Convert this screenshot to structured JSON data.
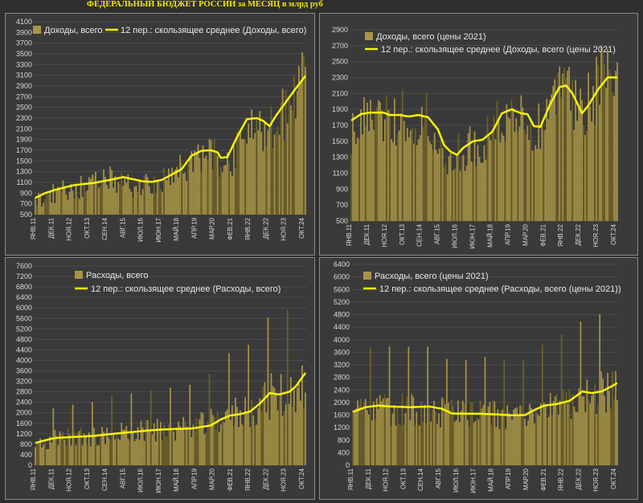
{
  "title": "ФЕДЕРАЛЬНЫЙ БЮДЖЕТ РОССИИ за МЕСЯЦ в млрд руб",
  "colors": {
    "bar": "#a89445",
    "barDark": "#6e6228",
    "line": "#f5f500",
    "title": "#f3e600"
  },
  "chart_data": [
    {
      "type": "bar",
      "x_start": "2011-01",
      "months": 167,
      "x_ticks": [
        "ЯНВ.11",
        "ДЕК.11",
        "НОЯ.12",
        "ОКТ.13",
        "СЕН.14",
        "АВГ.15",
        "ИЮЛ.16",
        "ИЮН.17",
        "МАЙ.18",
        "АПР.19",
        "МАР.20",
        "ФЕВ.21",
        "ЯНВ.22",
        "ДЕК.22",
        "НОЯ.23",
        "ОКТ.24"
      ],
      "ylim": [
        500,
        4100
      ],
      "yticks": [
        500,
        700,
        900,
        1100,
        1300,
        1500,
        1700,
        1900,
        2100,
        2300,
        2500,
        2700,
        2900,
        3100,
        3300,
        3500,
        3700,
        3900,
        4100
      ],
      "series": [
        {
          "name": "Доходы, всего",
          "kind": "bar",
          "trend": [
            [
              0,
              750
            ],
            [
              12,
              890
            ],
            [
              24,
              1000
            ],
            [
              36,
              1060
            ],
            [
              48,
              1160
            ],
            [
              60,
              1010
            ],
            [
              72,
              1050
            ],
            [
              84,
              1200
            ],
            [
              96,
              1500
            ],
            [
              108,
              1640
            ],
            [
              114,
              1450
            ],
            [
              120,
              1500
            ],
            [
              132,
              2200
            ],
            [
              144,
              2050
            ],
            [
              156,
              2500
            ],
            [
              166,
              3080
            ]
          ],
          "noise": 0.22
        },
        {
          "name": "12 пер.: скользящее среднее (Доходы, всего)",
          "kind": "line",
          "points": [
            [
              0,
              810
            ],
            [
              6,
              900
            ],
            [
              12,
              960
            ],
            [
              24,
              1050
            ],
            [
              36,
              1090
            ],
            [
              48,
              1160
            ],
            [
              54,
              1200
            ],
            [
              60,
              1160
            ],
            [
              66,
              1120
            ],
            [
              72,
              1110
            ],
            [
              78,
              1150
            ],
            [
              84,
              1250
            ],
            [
              90,
              1350
            ],
            [
              96,
              1600
            ],
            [
              102,
              1690
            ],
            [
              108,
              1700
            ],
            [
              112,
              1660
            ],
            [
              114,
              1560
            ],
            [
              118,
              1570
            ],
            [
              124,
              1950
            ],
            [
              130,
              2280
            ],
            [
              136,
              2300
            ],
            [
              140,
              2250
            ],
            [
              144,
              2150
            ],
            [
              148,
              2350
            ],
            [
              154,
              2600
            ],
            [
              160,
              2850
            ],
            [
              166,
              3090
            ]
          ]
        }
      ]
    },
    {
      "type": "bar",
      "x_start": "2011-01",
      "months": 167,
      "x_ticks": [
        "ЯНВ.11",
        "ДЕК.11",
        "НОЯ.12",
        "ОКТ.13",
        "СЕН.14",
        "АВГ.15",
        "ИЮЛ.16",
        "ИЮН.17",
        "МАЙ.18",
        "АПР.19",
        "МАР.20",
        "ФЕВ.21",
        "ЯНВ.22",
        "ДЕК.22",
        "НОЯ.23",
        "ОКТ.24"
      ],
      "ylim": [
        500,
        3000
      ],
      "yticks": [
        500,
        700,
        900,
        1100,
        1300,
        1500,
        1700,
        1900,
        2100,
        2300,
        2500,
        2700,
        2900
      ],
      "series": [
        {
          "name": "Доходы, всего (цены 2021)",
          "kind": "bar",
          "trend": [
            [
              0,
              1650
            ],
            [
              12,
              1820
            ],
            [
              24,
              1800
            ],
            [
              36,
              1800
            ],
            [
              48,
              1780
            ],
            [
              60,
              1350
            ],
            [
              72,
              1400
            ],
            [
              84,
              1480
            ],
            [
              96,
              1850
            ],
            [
              108,
              1830
            ],
            [
              114,
              1650
            ],
            [
              120,
              1700
            ],
            [
              132,
              2150
            ],
            [
              144,
              1850
            ],
            [
              156,
              2250
            ],
            [
              166,
              2320
            ]
          ],
          "noise": 0.2
        },
        {
          "name": "12 пер.: скользящее среднее (Доходы, всего (цены 2021)",
          "kind": "line",
          "points": [
            [
              0,
              1760
            ],
            [
              6,
              1840
            ],
            [
              12,
              1860
            ],
            [
              20,
              1860
            ],
            [
              24,
              1830
            ],
            [
              30,
              1830
            ],
            [
              36,
              1810
            ],
            [
              42,
              1830
            ],
            [
              48,
              1800
            ],
            [
              54,
              1650
            ],
            [
              58,
              1450
            ],
            [
              62,
              1370
            ],
            [
              66,
              1330
            ],
            [
              70,
              1420
            ],
            [
              76,
              1500
            ],
            [
              82,
              1520
            ],
            [
              88,
              1620
            ],
            [
              94,
              1850
            ],
            [
              100,
              1900
            ],
            [
              106,
              1850
            ],
            [
              110,
              1840
            ],
            [
              114,
              1690
            ],
            [
              118,
              1680
            ],
            [
              124,
              1960
            ],
            [
              130,
              2180
            ],
            [
              134,
              2200
            ],
            [
              138,
              2100
            ],
            [
              144,
              1850
            ],
            [
              148,
              1950
            ],
            [
              154,
              2150
            ],
            [
              160,
              2300
            ],
            [
              166,
              2300
            ]
          ]
        }
      ]
    },
    {
      "type": "bar",
      "x_start": "2011-01",
      "months": 167,
      "x_ticks": [
        "ЯНВ.11",
        "ДЕК.11",
        "НОЯ.12",
        "ОКТ.13",
        "СЕН.14",
        "АВГ.15",
        "ИЮЛ.16",
        "ИЮН.17",
        "МАЙ.18",
        "АПР.19",
        "МАР.20",
        "ФЕВ.21",
        "ЯНВ.22",
        "ДЕК.22",
        "НОЯ.23",
        "ОКТ.24"
      ],
      "ylim": [
        0,
        7600
      ],
      "yticks": [
        0,
        400,
        800,
        1200,
        1600,
        2000,
        2400,
        2800,
        3200,
        3600,
        4000,
        4400,
        4800,
        5200,
        5600,
        6000,
        6400,
        6800,
        7200,
        7600
      ],
      "series": [
        {
          "name": "Расходы, всего",
          "kind": "bar",
          "trend": [
            [
              0,
              800
            ],
            [
              12,
              1000
            ],
            [
              24,
              1050
            ],
            [
              36,
              1100
            ],
            [
              48,
              1200
            ],
            [
              60,
              1250
            ],
            [
              72,
              1300
            ],
            [
              84,
              1350
            ],
            [
              96,
              1400
            ],
            [
              108,
              1600
            ],
            [
              114,
              1900
            ],
            [
              120,
              1950
            ],
            [
              132,
              2100
            ],
            [
              144,
              2600
            ],
            [
              156,
              2700
            ],
            [
              166,
              3300
            ]
          ],
          "noise": 0.35,
          "spike_factor": 2.2
        },
        {
          "name": "12 пер.: скользящее среднее (Расходы, всего)",
          "kind": "line",
          "points": [
            [
              0,
              850
            ],
            [
              6,
              950
            ],
            [
              12,
              1040
            ],
            [
              24,
              1080
            ],
            [
              36,
              1120
            ],
            [
              48,
              1200
            ],
            [
              60,
              1270
            ],
            [
              72,
              1340
            ],
            [
              84,
              1380
            ],
            [
              96,
              1400
            ],
            [
              108,
              1520
            ],
            [
              114,
              1750
            ],
            [
              120,
              1900
            ],
            [
              126,
              1950
            ],
            [
              132,
              2050
            ],
            [
              138,
              2350
            ],
            [
              144,
              2750
            ],
            [
              150,
              2700
            ],
            [
              156,
              2800
            ],
            [
              160,
              3000
            ],
            [
              166,
              3520
            ]
          ]
        }
      ]
    },
    {
      "type": "bar",
      "x_start": "2011-01",
      "months": 167,
      "x_ticks": [
        "ЯНВ.11",
        "ДЕК.11",
        "НОЯ.12",
        "ОКТ.13",
        "СЕН.14",
        "АВГ.15",
        "ИЮЛ.16",
        "ИЮН.17",
        "МАЙ.18",
        "АПР.19",
        "МАР.20",
        "ФЕВ.21",
        "ЯНВ.22",
        "ДЕК.22",
        "НОЯ.23",
        "ОКТ.24"
      ],
      "ylim": [
        0,
        6400
      ],
      "yticks": [
        0,
        400,
        800,
        1200,
        1600,
        2000,
        2400,
        2800,
        3200,
        3600,
        4000,
        4400,
        4800,
        5200,
        5600,
        6000,
        6400
      ],
      "series": [
        {
          "name": "Расходы, всего (цены 2021)",
          "kind": "bar",
          "trend": [
            [
              0,
              1650
            ],
            [
              12,
              1800
            ],
            [
              24,
              1800
            ],
            [
              36,
              1800
            ],
            [
              48,
              1800
            ],
            [
              60,
              1600
            ],
            [
              72,
              1600
            ],
            [
              84,
              1650
            ],
            [
              96,
              1600
            ],
            [
              108,
              1600
            ],
            [
              114,
              1750
            ],
            [
              120,
              1850
            ],
            [
              132,
              2000
            ],
            [
              144,
              2200
            ],
            [
              156,
              2300
            ],
            [
              166,
              2600
            ]
          ],
          "noise": 0.3,
          "spike_factor": 2.1
        },
        {
          "name": "12 пер.: скользящее среднее (Расходы, всего (цены 2021)",
          "kind": "line",
          "points": [
            [
              0,
              1700
            ],
            [
              8,
              1850
            ],
            [
              16,
              1900
            ],
            [
              24,
              1870
            ],
            [
              36,
              1850
            ],
            [
              48,
              1870
            ],
            [
              56,
              1800
            ],
            [
              62,
              1650
            ],
            [
              70,
              1640
            ],
            [
              80,
              1640
            ],
            [
              90,
              1620
            ],
            [
              100,
              1590
            ],
            [
              108,
              1600
            ],
            [
              114,
              1760
            ],
            [
              120,
              1900
            ],
            [
              128,
              1950
            ],
            [
              136,
              2050
            ],
            [
              144,
              2350
            ],
            [
              150,
              2300
            ],
            [
              156,
              2350
            ],
            [
              162,
              2500
            ],
            [
              166,
              2620
            ]
          ]
        }
      ]
    }
  ],
  "legends": [
    {
      "bar": "Доходы, всего",
      "line": "12 пер.: скользящее среднее (Доходы, всего)"
    },
    {
      "bar": "Доходы, всего (цены 2021)",
      "line": "12 пер.: скользящее среднее (Доходы, всего (цены 2021)"
    },
    {
      "bar": "Расходы, всего",
      "line": "12 пер.: скользящее среднее (Расходы, всего)"
    },
    {
      "bar": "Расходы, всего (цены 2021)",
      "line": "12 пер.: скользящее среднее (Расходы, всего (цены 2021))"
    }
  ]
}
